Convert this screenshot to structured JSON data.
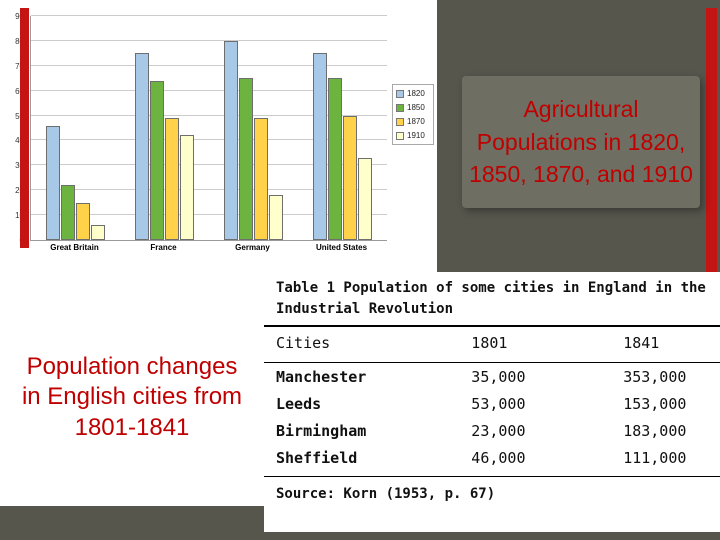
{
  "slide": {
    "bg_color": "#57564d",
    "border_color": "#c41414",
    "accent_text_color": "#c00000",
    "title_box_bg": "#6f6e62"
  },
  "title_box": {
    "text": "Agricultural Populations in 1820, 1850, 1870, and 1910"
  },
  "caption": {
    "text": "Population changes in English cities from 1801-1841"
  },
  "chart_data": {
    "type": "bar",
    "title": "",
    "xlabel": "",
    "ylabel": "",
    "categories": [
      "Great Britain",
      "France",
      "Germany",
      "United States"
    ],
    "series": [
      {
        "name": "1820",
        "color": "#a8c8e8",
        "values": [
          46,
          75,
          80,
          75
        ]
      },
      {
        "name": "1850",
        "color": "#6db33f",
        "values": [
          22,
          64,
          65,
          65
        ]
      },
      {
        "name": "1870",
        "color": "#ffd24a",
        "values": [
          15,
          49,
          49,
          50
        ]
      },
      {
        "name": "1910",
        "color": "#ffffcc",
        "values": [
          6,
          42,
          18,
          33
        ]
      }
    ],
    "ylim": [
      0,
      90
    ],
    "ytick_step": 10,
    "grid": true,
    "legend_position": "right"
  },
  "table": {
    "title": "Table 1 Population of some cities in England in the Industrial Revolution",
    "columns": [
      "Cities",
      "1801",
      "1841"
    ],
    "rows": [
      [
        "Manchester",
        "35,000",
        "353,000"
      ],
      [
        "Leeds",
        "53,000",
        "153,000"
      ],
      [
        "Birmingham",
        "23,000",
        "183,000"
      ],
      [
        "Sheffield",
        "46,000",
        "111,000"
      ]
    ],
    "source": "Source: Korn (1953, p. 67)"
  }
}
